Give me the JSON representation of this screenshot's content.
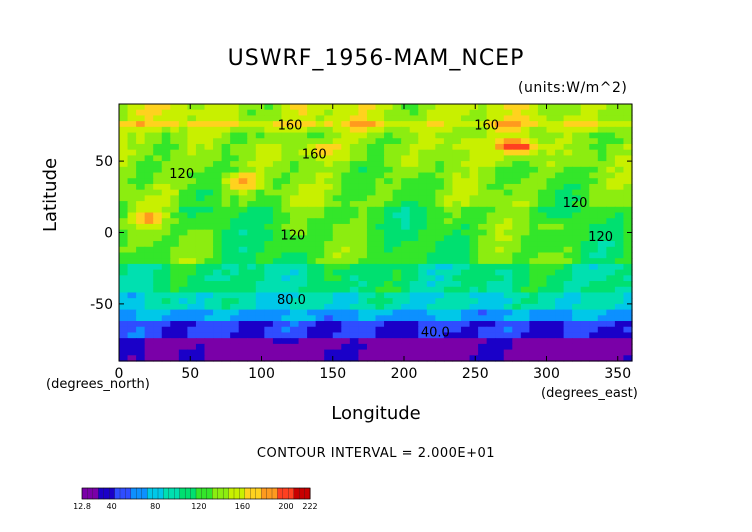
{
  "chart_data": {
    "type": "heatmap",
    "title": "USWRF_1956-MAM_NCEP",
    "units_label": "(units:W/m^2)",
    "xlabel": "Longitude",
    "ylabel": "Latitude",
    "x_unit_label": "(degrees_east)",
    "y_unit_label": "(degrees_north)",
    "xlim": [
      0,
      360
    ],
    "ylim": [
      -90,
      90
    ],
    "x_ticks": [
      0,
      50,
      100,
      150,
      200,
      250,
      300,
      350
    ],
    "x_tick_labels": [
      "0",
      "50",
      "100",
      "150",
      "200",
      "250",
      "300",
      "350"
    ],
    "y_ticks": [
      50,
      0,
      -50
    ],
    "y_tick_labels": [
      "50",
      "0",
      "-50"
    ],
    "contour_interval_text": "CONTOUR INTERVAL = 2.000E+01",
    "contour_labels": [
      {
        "text": "160",
        "x": 120,
        "y": 72
      },
      {
        "text": "160",
        "x": 258,
        "y": 72
      },
      {
        "text": "160",
        "x": 137,
        "y": 52
      },
      {
        "text": "120",
        "x": 44,
        "y": 38
      },
      {
        "text": "120",
        "x": 122,
        "y": -5
      },
      {
        "text": "120",
        "x": 320,
        "y": 18
      },
      {
        "text": "120",
        "x": 338,
        "y": -6
      },
      {
        "text": "80.0",
        "x": 121,
        "y": -50
      },
      {
        "text": "40.0",
        "x": 222,
        "y": -73
      }
    ],
    "colorbar": {
      "min_label": "12.8",
      "max_label": "222",
      "tick_labels": [
        "40",
        "80",
        "120",
        "160",
        "200"
      ],
      "tick_values": [
        40,
        80,
        120,
        160,
        200
      ],
      "range": [
        12.8,
        222
      ]
    },
    "colors": [
      "#7a00a8",
      "#1a00c8",
      "#2f4dff",
      "#0d90ff",
      "#00c8e8",
      "#00e0b0",
      "#00e070",
      "#33e62a",
      "#8ced10",
      "#c8f000",
      "#ffd21e",
      "#ff9a1e",
      "#ff4020",
      "#c80000"
    ]
  }
}
